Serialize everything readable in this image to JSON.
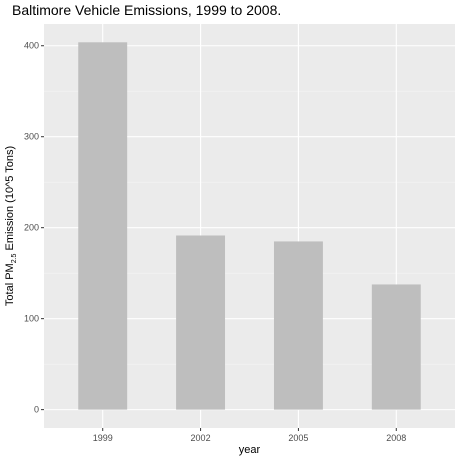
{
  "chart_data": {
    "type": "bar",
    "title": "Baltimore Vehicle Emissions, 1999 to 2008.",
    "xlabel": "year",
    "ylabel": {
      "prefix": "Total PM",
      "subscript": "2.5",
      "suffix": " Emission (10^5 Tons)"
    },
    "categories": [
      "1999",
      "2002",
      "2005",
      "2008"
    ],
    "values": [
      403.8,
      191.4,
      184.9,
      137.6
    ],
    "yticks": [
      0,
      100,
      200,
      300,
      400
    ],
    "ylim": [
      -20.2,
      423.9
    ],
    "grid": true,
    "legend": "none",
    "colors": {
      "panel": "#ebebeb",
      "grid_major": "#ffffff",
      "grid_minor": "#f5f5f5",
      "bar": "#bebebe",
      "tick_label": "#4d4d4d"
    }
  }
}
